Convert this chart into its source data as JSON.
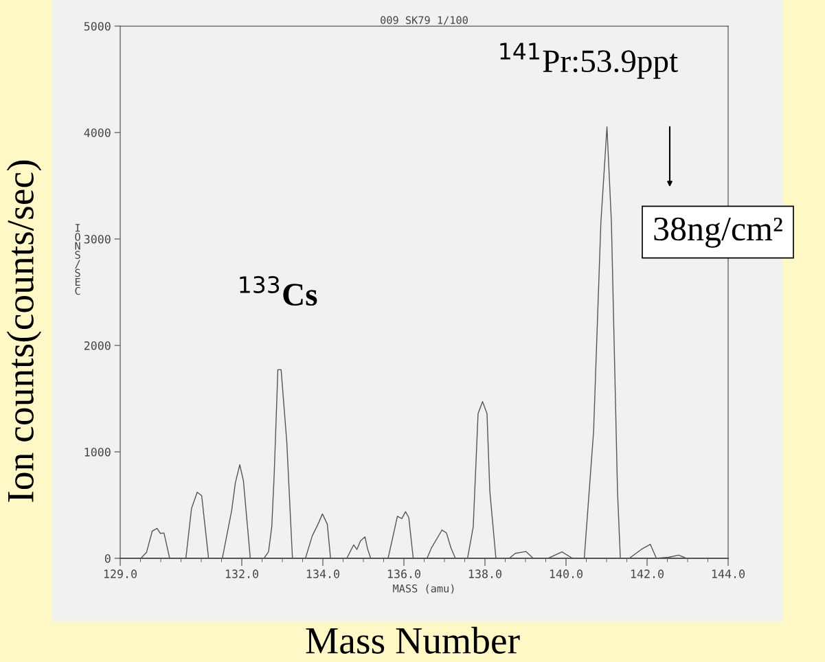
{
  "chart_data": {
    "type": "line",
    "title": "009 SK79 1/100",
    "xlabel": "MASS (amu)",
    "ylabel": "IONS/SEC",
    "x": [
      129.14,
      129.51,
      129.65,
      129.79,
      129.91,
      129.99,
      130.08,
      130.22,
      130.5,
      130.62,
      130.76,
      130.9,
      131.01,
      131.18,
      131.52,
      131.75,
      131.84,
      131.95,
      132.04,
      132.21,
      132.55,
      132.66,
      132.74,
      132.8,
      132.89,
      132.97,
      133.11,
      133.25,
      133.57,
      133.74,
      133.88,
      133.99,
      134.11,
      134.19,
      134.59,
      134.76,
      134.84,
      134.93,
      135.04,
      135.1,
      135.18,
      135.61,
      135.84,
      135.95,
      136.04,
      136.12,
      136.23,
      136.57,
      136.68,
      136.94,
      137.05,
      137.16,
      137.27,
      137.57,
      137.71,
      137.83,
      137.94,
      138.05,
      138.12,
      138.27,
      138.6,
      138.75,
      139.01,
      139.19,
      139.56,
      139.9,
      140.16,
      140.45,
      140.68,
      140.86,
      141.01,
      141.12,
      141.27,
      141.34,
      141.56,
      141.86,
      142.08,
      142.23,
      142.53,
      142.78,
      142.97,
      143.45
    ],
    "series": [
      {
        "color": "#555555",
        "values": [
          0,
          0,
          57,
          255,
          281,
          234,
          238,
          0,
          0,
          0,
          470,
          621,
          589,
          0,
          0,
          449,
          707,
          879,
          728,
          0,
          0,
          62,
          298,
          793,
          1772,
          1772,
          1094,
          0,
          0,
          212,
          320,
          417,
          320,
          0,
          0,
          126,
          83,
          165,
          201,
          94,
          0,
          0,
          395,
          373,
          438,
          384,
          0,
          0,
          98,
          266,
          238,
          98,
          0,
          0,
          294,
          1360,
          1472,
          1360,
          630,
          0,
          0,
          47,
          64,
          0,
          0,
          61,
          0,
          0,
          1192,
          3155,
          4053,
          3155,
          630,
          0,
          0,
          84,
          131,
          0,
          10,
          30,
          0,
          0
        ]
      }
    ],
    "xlim": [
      129,
      144
    ],
    "xticks": [
      {
        "value": 129,
        "label": "129.0"
      },
      {
        "value": 132,
        "label": "132.0"
      },
      {
        "value": 134,
        "label": "134.0"
      },
      {
        "value": 136,
        "label": "136.0"
      },
      {
        "value": 138,
        "label": "138.0"
      },
      {
        "value": 140,
        "label": "140.0"
      },
      {
        "value": 142,
        "label": "142.0"
      },
      {
        "value": 144,
        "label": "144.0"
      }
    ],
    "ylim": [
      0,
      5000
    ],
    "yticks": [
      0,
      1000,
      2000,
      3000,
      4000,
      5000
    ],
    "grid": false,
    "legend": false,
    "marker": "none",
    "line_style": "solid",
    "annotations": [
      "Ion counts(counts/sec)",
      "Mass Number",
      {
        "text": "$^{133}$Cs",
        "x": 133,
        "y": 1772
      },
      {
        "text": "$^{141}$Pr:53.9ppt",
        "x": 141.01,
        "y": 4053
      },
      "38ng/cm²"
    ]
  }
}
